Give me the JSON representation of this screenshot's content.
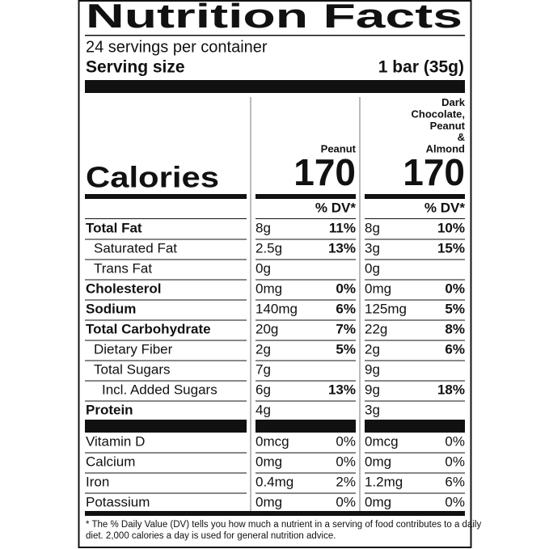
{
  "title": "Nutrition Facts",
  "servings": "24 servings per container",
  "serving_size": {
    "label": "Serving size",
    "value": "1 bar (35g)"
  },
  "calories_label": "Calories",
  "columns": [
    {
      "name": [
        "Peanut"
      ],
      "calories": "170",
      "dv_header": "% DV*"
    },
    {
      "name": [
        "Dark",
        "Chocolate,",
        "Peanut",
        "&",
        "Almond"
      ],
      "calories": "170",
      "dv_header": "% DV*"
    }
  ],
  "nutrients": [
    {
      "label": "Total Fat",
      "bold": true,
      "indent": 0,
      "values": [
        [
          "8g",
          "11%"
        ],
        [
          "8g",
          "10%"
        ]
      ]
    },
    {
      "label": "Saturated Fat",
      "bold": false,
      "indent": 1,
      "values": [
        [
          "2.5g",
          "13%"
        ],
        [
          "3g",
          "15%"
        ]
      ]
    },
    {
      "label": "Trans Fat",
      "bold": false,
      "indent": 1,
      "values": [
        [
          "0g"
        ],
        [
          "0g"
        ]
      ]
    },
    {
      "label": "Cholesterol",
      "bold": true,
      "indent": 0,
      "values": [
        [
          "0mg",
          "0%"
        ],
        [
          "0mg",
          "0%"
        ]
      ]
    },
    {
      "label": "Sodium",
      "bold": true,
      "indent": 0,
      "values": [
        [
          "140mg",
          "6%"
        ],
        [
          "125mg",
          "5%"
        ]
      ]
    },
    {
      "label": "Total Carbohydrate",
      "bold": true,
      "indent": 0,
      "values": [
        [
          "20g",
          "7%"
        ],
        [
          "22g",
          "8%"
        ]
      ]
    },
    {
      "label": "Dietary Fiber",
      "bold": false,
      "indent": 1,
      "values": [
        [
          "2g",
          "5%"
        ],
        [
          "2g",
          "6%"
        ]
      ]
    },
    {
      "label": "Total Sugars",
      "bold": false,
      "indent": 1,
      "values": [
        [
          "7g"
        ],
        [
          "9g"
        ]
      ]
    },
    {
      "label": "Incl. Added Sugars",
      "bold": false,
      "indent": 2,
      "values": [
        [
          "6g",
          "13%"
        ],
        [
          "9g",
          "18%"
        ]
      ]
    },
    {
      "label": "Protein",
      "bold": true,
      "indent": 0,
      "values": [
        [
          "4g"
        ],
        [
          "3g"
        ]
      ]
    }
  ],
  "vitamins": [
    {
      "label": "Vitamin D",
      "values": [
        [
          "0mcg",
          "0%"
        ],
        [
          "0mcg",
          "0%"
        ]
      ]
    },
    {
      "label": "Calcium",
      "values": [
        [
          "0mg",
          "0%"
        ],
        [
          "0mg",
          "0%"
        ]
      ]
    },
    {
      "label": "Iron",
      "values": [
        [
          "0.4mg",
          "2%"
        ],
        [
          "1.2mg",
          "6%"
        ]
      ]
    },
    {
      "label": "Potassium",
      "values": [
        [
          "0mg",
          "0%"
        ],
        [
          "0mg",
          "0%"
        ]
      ]
    }
  ],
  "footnote": [
    "* The % Daily Value (DV) tells you how much a nutrient in a serving of food contributes to a daily",
    "diet. 2,000 calories a day is used for general nutrition advice."
  ]
}
